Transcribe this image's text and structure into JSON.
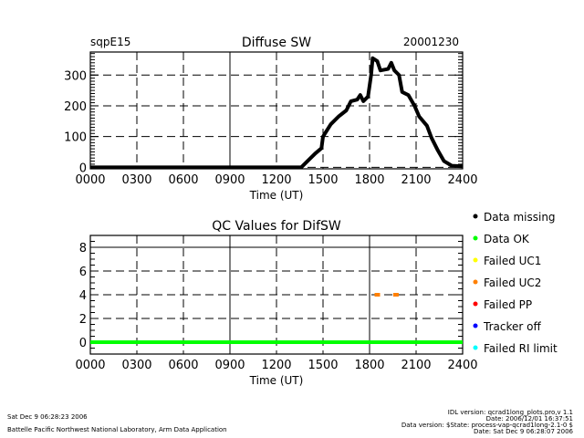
{
  "chart_data": [
    {
      "type": "line",
      "title": "Diffuse SW",
      "site": "sqpE15",
      "date": "20001230",
      "xlabel": "Time (UT)",
      "ylabel": "",
      "xlim": [
        0,
        24
      ],
      "ylim": [
        -5,
        375
      ],
      "x_ticks": [
        "0000",
        "0300",
        "0600",
        "0900",
        "1200",
        "1500",
        "1800",
        "2100",
        "2400"
      ],
      "y_ticks": [
        0,
        100,
        200,
        300
      ],
      "grid": true,
      "series": [
        {
          "name": "Diffuse SW",
          "color": "#000000",
          "x": [
            0,
            13.6,
            14.0,
            14.5,
            14.9,
            15.0,
            15.5,
            16.0,
            16.5,
            16.8,
            17.2,
            17.4,
            17.6,
            17.9,
            18.1,
            18.2,
            18.5,
            18.7,
            19.2,
            19.4,
            19.6,
            19.9,
            20.1,
            20.5,
            20.9,
            21.2,
            21.7,
            22.0,
            22.4,
            22.8,
            23.3,
            24.0
          ],
          "y": [
            0,
            0,
            20,
            45,
            62,
            100,
            140,
            165,
            185,
            215,
            220,
            235,
            215,
            230,
            300,
            355,
            345,
            315,
            320,
            340,
            315,
            300,
            245,
            235,
            200,
            165,
            135,
            95,
            55,
            20,
            5,
            3
          ]
        }
      ]
    },
    {
      "type": "scatter",
      "title": "QC Values for DifSW",
      "xlabel": "Time (UT)",
      "xlim": [
        0,
        24
      ],
      "ylim": [
        -1,
        9
      ],
      "x_ticks": [
        "0000",
        "0300",
        "0600",
        "0900",
        "1200",
        "1500",
        "1800",
        "2100",
        "2400"
      ],
      "y_ticks": [
        0,
        2,
        4,
        6,
        8
      ],
      "grid": true,
      "series": [
        {
          "name": "Data OK",
          "color": "#00ff00",
          "type": "line",
          "x": [
            0,
            24
          ],
          "y": [
            0,
            0
          ]
        },
        {
          "name": "Failed UC2",
          "color": "#ff8000",
          "type": "scatter",
          "x": [
            18.5,
            19.7
          ],
          "y": [
            4,
            4
          ]
        }
      ],
      "legend": {
        "placement": "right",
        "entries": [
          {
            "label": "Data missing",
            "color": "#000000"
          },
          {
            "label": "Data OK",
            "color": "#00ff00"
          },
          {
            "label": "Failed UC1",
            "color": "#ffff00"
          },
          {
            "label": "Failed UC2",
            "color": "#ff8000"
          },
          {
            "label": "Failed PP",
            "color": "#ff0000"
          },
          {
            "label": "Tracker off",
            "color": "#0000ff"
          },
          {
            "label": "Failed RI limit",
            "color": "#00ffff"
          }
        ]
      }
    }
  ],
  "footer": {
    "run_date": "Sat Dec  9 06:28:23 2006",
    "lab": "Battelle Pacific Northwest National Laboratory, Arm Data Application",
    "idl_version": "IDL version: qcrad1long_plots.pro,v 1.1",
    "idl_date": "Date: 2006/12/01 16:37:51",
    "data_version": "Data version: $State: process-vap-qcrad1long-2.1-0 $",
    "data_date": "Date: Sat Dec  9 06:28:07 2006"
  }
}
